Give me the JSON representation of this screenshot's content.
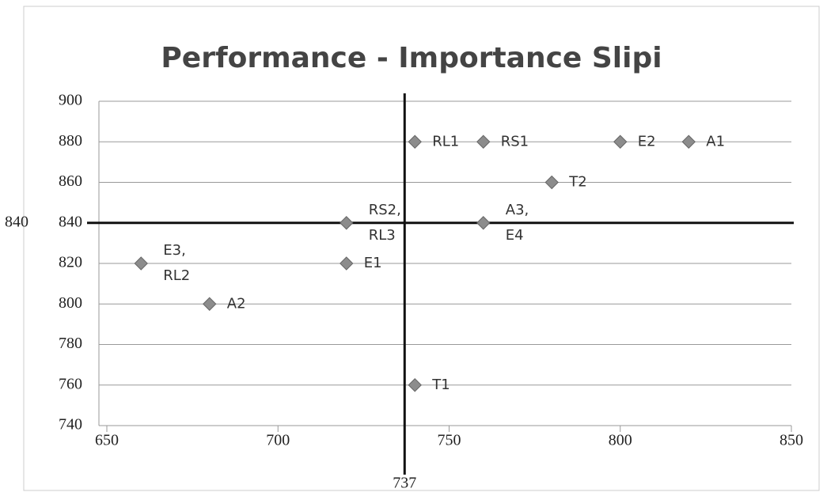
{
  "chart_data": {
    "type": "scatter",
    "title": "Performance - Importance Slipi",
    "x": [
      740,
      760,
      800,
      820,
      780,
      720,
      760,
      660,
      720,
      680,
      740
    ],
    "values": [
      880,
      880,
      880,
      880,
      860,
      840,
      840,
      820,
      820,
      800,
      760
    ],
    "point_labels": [
      [
        "RL1"
      ],
      [
        "RS1"
      ],
      [
        "E2"
      ],
      [
        "A1"
      ],
      [
        "T2"
      ],
      [
        "RS2,",
        "RL3"
      ],
      [
        "A3,",
        "E4"
      ],
      [
        "E3,",
        "RL2"
      ],
      [
        "E1"
      ],
      [
        "A2"
      ],
      [
        "T1"
      ]
    ],
    "color": "#8c8c8c",
    "xlim": [
      650,
      850
    ],
    "xticks": [
      650,
      700,
      750,
      800,
      850
    ],
    "ylim": [
      740,
      900
    ],
    "yticks": [
      740,
      760,
      780,
      800,
      820,
      840,
      860,
      880,
      900
    ],
    "x_reference": 737,
    "y_reference": 840,
    "grid": true
  }
}
